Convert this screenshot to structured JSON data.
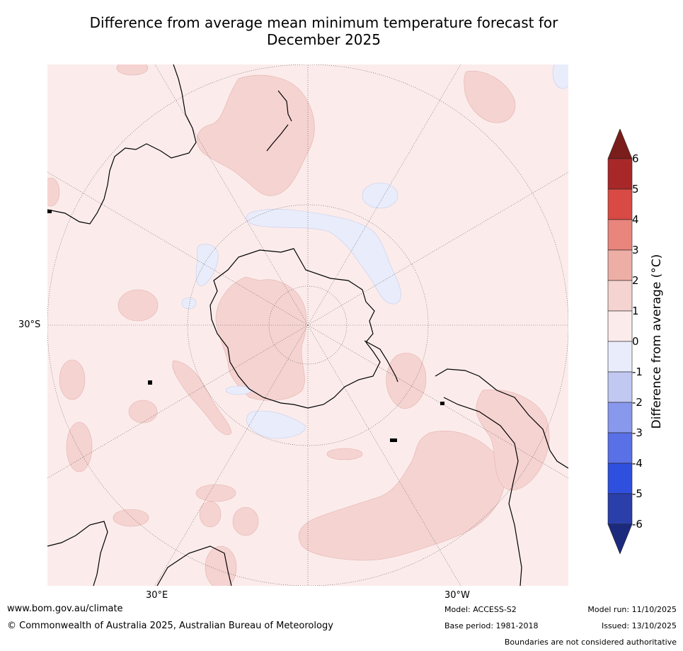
{
  "title_line1": "Difference from average mean minimum temperature forecast for",
  "title_line2": "December 2025",
  "axis_labels": {
    "lat": "30°S",
    "lon_east": "30°E",
    "lon_west": "30°W"
  },
  "colorbar": {
    "title": "Difference from average (°C)",
    "ticks": [
      "6",
      "5",
      "4",
      "3",
      "2",
      "1",
      "0",
      "-1",
      "-2",
      "-3",
      "-4",
      "-5",
      "-6"
    ],
    "colors": [
      "#7a1e1b",
      "#a8282a",
      "#d94a45",
      "#e8857c",
      "#edaea6",
      "#f5d3d1",
      "#fbeceb",
      "#e9ecfa",
      "#c1c8f2",
      "#8898ec",
      "#5a70e6",
      "#2f4fdf",
      "#2a3faa",
      "#1c2a7e"
    ]
  },
  "map": {
    "background_anomaly_class": "0 to 1",
    "background_color": "#fbeceb",
    "warm_color": "#f5d3d1",
    "cool_color": "#e9ecfa",
    "features": [
      "antarctica-coastline",
      "new-zealand",
      "australia-coast",
      "south-america-coast",
      "africa-coast",
      "graticule"
    ]
  },
  "footer": {
    "website": "www.bom.gov.au/climate",
    "copyright": "© Commonwealth of Australia 2025, Australian Bureau of Meteorology",
    "model": "Model: ACCESS-S2",
    "base_period": "Base period: 1981-2018",
    "model_run": "Model run: 11/10/2025",
    "issued": "Issued: 13/10/2025",
    "disclaimer": "Boundaries are not considered authoritative"
  }
}
